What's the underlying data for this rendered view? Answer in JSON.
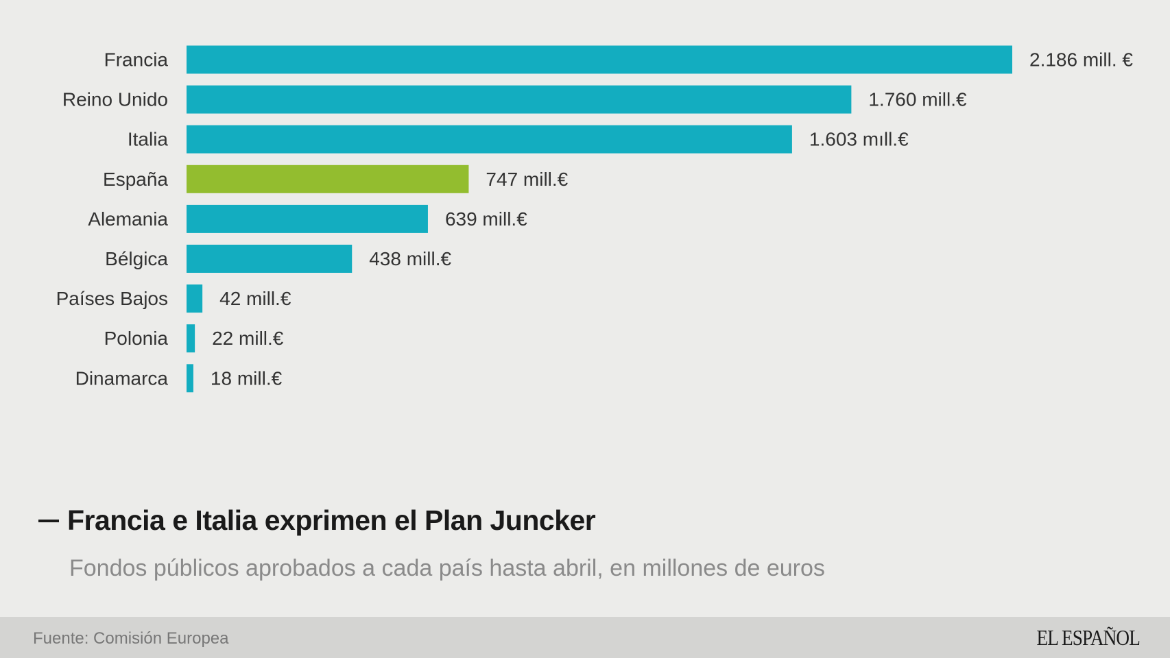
{
  "chart_data": {
    "type": "bar",
    "orientation": "horizontal",
    "categories": [
      "Francia",
      "Reino Unido",
      "Italia",
      "España",
      "Alemania",
      "Bélgica",
      "Países Bajos",
      "Polonia",
      "Dinamarca"
    ],
    "values": [
      2186,
      1760,
      1603,
      747,
      639,
      438,
      42,
      22,
      18
    ],
    "value_labels": [
      "2.186 mill. €",
      "1.760 mill.€",
      "1.603 mıll.€",
      "747 mill.€",
      "639 mill.€",
      "438 mill.€",
      "42 mill.€",
      "22 mill.€",
      "18 mill.€"
    ],
    "highlight": "España",
    "colors": {
      "default": "#13adc0",
      "highlight": "#93bd2f"
    },
    "xlim": [
      0,
      2186
    ],
    "grid": false,
    "legend": "none"
  },
  "header": {
    "title": "Francia e Italia exprimen el Plan Juncker",
    "subtitle": "Fondos públicos aprobados a cada país hasta abril, en millones de euros"
  },
  "footer": {
    "source": "Fuente: Comisión Europea",
    "logo": "EL ESPAÑOL"
  }
}
